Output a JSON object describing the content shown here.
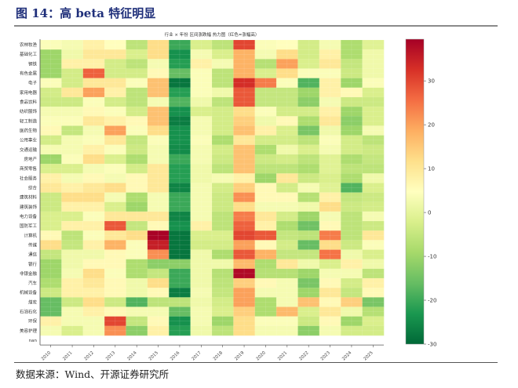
{
  "figure": {
    "title": "图 14：高 beta 特征明显",
    "source": "数据来源：Wind、开源证券研究所"
  },
  "chart_data": {
    "type": "heatmap",
    "title": "行业 × 年份 区间涨跌幅 热力图（红色=涨幅高）",
    "xlabel": "",
    "ylabel": "",
    "x": [
      "2010",
      "2011",
      "2012",
      "2013",
      "2014",
      "2015",
      "2016",
      "2017",
      "2018",
      "2019",
      "2020",
      "2021",
      "2022",
      "2023",
      "2024",
      "2025"
    ],
    "y": [
      "农林牧渔",
      "基础化工",
      "钢铁",
      "有色金属",
      "电子",
      "家用电器",
      "食品饮料",
      "纺织服饰",
      "轻工制造",
      "医药生物",
      "公用事业",
      "交通运输",
      "房地产",
      "商贸零售",
      "社会服务",
      "综合",
      "建筑材料",
      "建筑装饰",
      "电力设备",
      "国防军工",
      "计算机",
      "传媒",
      "通信",
      "银行",
      "非银金融",
      "汽车",
      "机械设备",
      "煤炭",
      "石油石化",
      "环保",
      "美容护理",
      "nan"
    ],
    "values": [
      [
        4,
        3,
        8,
        5,
        -6,
        12,
        -20,
        -2,
        -6,
        30,
        4,
        5,
        -3,
        3,
        -8,
        -1
      ],
      [
        -10,
        2,
        10,
        10,
        -2,
        12,
        -24,
        3,
        -2,
        18,
        3,
        12,
        -3,
        8,
        -8,
        2
      ],
      [
        -10,
        8,
        8,
        -3,
        -6,
        3,
        -22,
        8,
        3,
        18,
        -7,
        20,
        -2,
        10,
        -5,
        2
      ],
      [
        -10,
        -3,
        27,
        -3,
        -3,
        6,
        -16,
        4,
        -6,
        18,
        -2,
        12,
        4,
        4,
        -4,
        2
      ],
      [
        4,
        -3,
        10,
        10,
        4,
        16,
        -28,
        4,
        -6,
        33,
        24,
        4,
        -18,
        8,
        -10,
        4
      ],
      [
        -3,
        10,
        20,
        8,
        -6,
        16,
        -22,
        4,
        2,
        28,
        -5,
        -5,
        -10,
        8,
        6,
        -2
      ],
      [
        -4,
        -4,
        4,
        -3,
        -6,
        3,
        -18,
        2,
        -6,
        28,
        -5,
        -5,
        -12,
        3,
        -4,
        -4
      ],
      [
        3,
        3,
        6,
        4,
        -3,
        16,
        -24,
        -2,
        -3,
        12,
        4,
        -3,
        -3,
        8,
        -10,
        -2
      ],
      [
        4,
        4,
        10,
        8,
        6,
        16,
        -27,
        3,
        -3,
        14,
        2,
        6,
        -8,
        10,
        -12,
        -2
      ],
      [
        6,
        -5,
        3,
        20,
        4,
        12,
        -24,
        3,
        -3,
        16,
        8,
        -2,
        -14,
        2,
        -10,
        3
      ],
      [
        -3,
        3,
        4,
        10,
        -5,
        4,
        -24,
        4,
        -8,
        10,
        -3,
        -3,
        -6,
        4,
        -3,
        -6
      ],
      [
        3,
        3,
        8,
        4,
        -4,
        3,
        -25,
        3,
        -3,
        16,
        -8,
        2,
        -2,
        3,
        -3,
        -4
      ],
      [
        -10,
        4,
        12,
        -2,
        -8,
        3,
        -20,
        3,
        -4,
        16,
        -4,
        -3,
        -6,
        -1,
        -8,
        -5
      ],
      [
        -2,
        -2,
        3,
        4,
        -3,
        10,
        -22,
        2,
        -6,
        16,
        -6,
        -6,
        -8,
        -1,
        -6,
        -6
      ],
      [
        8,
        3,
        6,
        3,
        6,
        10,
        -22,
        2,
        3,
        8,
        -10,
        10,
        -4,
        -2,
        -8,
        2
      ],
      [
        10,
        8,
        10,
        12,
        6,
        10,
        -26,
        3,
        -3,
        14,
        6,
        -3,
        3,
        -1,
        -18,
        -2
      ],
      [
        -4,
        12,
        12,
        3,
        -8,
        3,
        -20,
        3,
        -4,
        22,
        6,
        6,
        -7,
        8,
        -5,
        -4
      ],
      [
        -4,
        8,
        8,
        -2,
        -10,
        3,
        -20,
        3,
        -4,
        12,
        3,
        3,
        2,
        12,
        -4,
        -3
      ],
      [
        -2,
        -2,
        4,
        10,
        10,
        10,
        -26,
        3,
        -6,
        24,
        10,
        -3,
        -10,
        3,
        -6,
        3
      ],
      [
        -2,
        8,
        8,
        28,
        -5,
        6,
        -24,
        8,
        -6,
        27,
        8,
        -8,
        -15,
        6,
        -6,
        -4
      ],
      [
        6,
        -6,
        4,
        10,
        12,
        39,
        -28,
        -2,
        -2,
        30,
        28,
        -5,
        -6,
        24,
        -6,
        10
      ],
      [
        12,
        -5,
        8,
        18,
        4,
        35,
        -28,
        -3,
        -3,
        20,
        6,
        -3,
        -16,
        12,
        -4,
        4
      ],
      [
        -5,
        2,
        2,
        6,
        4,
        22,
        -28,
        2,
        -8,
        28,
        18,
        -5,
        -5,
        25,
        2,
        -2
      ],
      [
        -10,
        2,
        6,
        6,
        -8,
        -12,
        -12,
        2,
        2,
        17,
        -8,
        10,
        2,
        -2,
        8,
        2
      ],
      [
        -10,
        3,
        12,
        4,
        -8,
        -5,
        -20,
        2,
        -7,
        38,
        -7,
        -7,
        -10,
        3,
        3,
        -6
      ],
      [
        -8,
        8,
        10,
        6,
        2,
        12,
        -20,
        2,
        -6,
        14,
        6,
        3,
        -14,
        6,
        -3,
        8
      ],
      [
        -4,
        8,
        8,
        6,
        2,
        6,
        -27,
        3,
        -5,
        20,
        3,
        3,
        -10,
        10,
        -5,
        6
      ],
      [
        -16,
        -4,
        12,
        -4,
        -18,
        -6,
        -6,
        2,
        -3,
        20,
        -8,
        3,
        16,
        6,
        14,
        -14
      ],
      [
        -16,
        3,
        8,
        6,
        3,
        3,
        -16,
        3,
        -2,
        14,
        -8,
        17,
        -2,
        10,
        2,
        -7
      ],
      [
        8,
        3,
        3,
        30,
        -5,
        6,
        -24,
        3,
        -10,
        12,
        4,
        4,
        -4,
        6,
        -10,
        -2
      ],
      [
        3,
        -2,
        3,
        22,
        -12,
        8,
        -22,
        2,
        -6,
        12,
        3,
        3,
        -12,
        3,
        -3,
        -3
      ],
      [
        null,
        null,
        null,
        null,
        null,
        null,
        null,
        null,
        null,
        null,
        null,
        null,
        null,
        null,
        null,
        null
      ]
    ],
    "colormap": "RdYlGn_r",
    "colorbar": {
      "range": [
        -30,
        39.5
      ],
      "ticks": [
        "30",
        "20",
        "10",
        "0",
        "-10",
        "-20",
        "-30"
      ],
      "tick_values": [
        30,
        20,
        10,
        0,
        -10,
        -20,
        -30
      ]
    },
    "grid": true,
    "legend": "colorbar-right"
  }
}
